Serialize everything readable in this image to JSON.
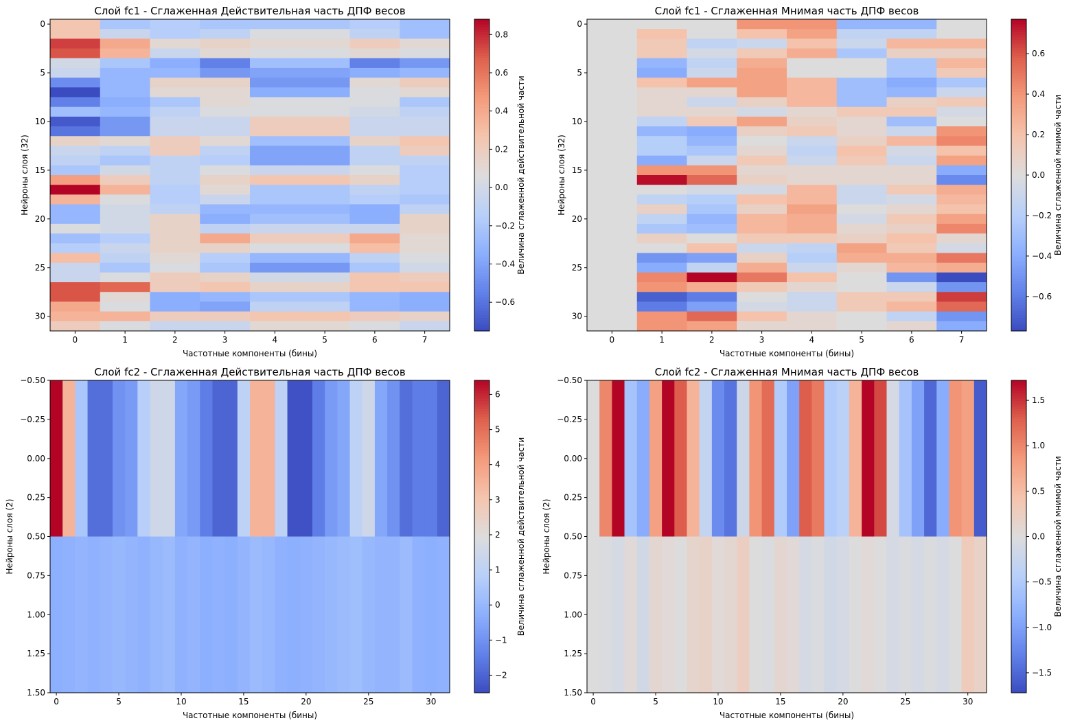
{
  "chart_data": [
    {
      "type": "heatmap",
      "title": "Слой fc1 - Сглаженная Действительная часть ДПФ весов",
      "xlabel": "Частотные компоненты (бины)",
      "ylabel": "Нейроны слоя (32)",
      "colorbar_label": "Величина сглаженной действительной части",
      "colormap": "coolwarm",
      "x_ticks": [
        "0",
        "1",
        "2",
        "3",
        "4",
        "5",
        "6",
        "7"
      ],
      "y_ticks": [
        "0",
        "5",
        "10",
        "15",
        "20",
        "25",
        "30"
      ],
      "cbar_ticks": [
        "−0.6",
        "−0.4",
        "−0.2",
        "0.0",
        "0.2",
        "0.4",
        "0.6",
        "0.8"
      ],
      "vmin": -0.75,
      "vmax": 0.88,
      "rows": 32,
      "cols": 8,
      "values": [
        [
          0.25,
          -0.2,
          -0.15,
          -0.2,
          -0.2,
          -0.2,
          -0.15,
          -0.25
        ],
        [
          0.25,
          -0.05,
          -0.15,
          -0.1,
          0.05,
          0.05,
          -0.1,
          -0.25
        ],
        [
          0.75,
          0.4,
          0.1,
          0.15,
          0.1,
          0.1,
          0.2,
          0.1
        ],
        [
          0.7,
          0.35,
          -0.05,
          0.1,
          0.05,
          0.05,
          0.1,
          0.05
        ],
        [
          0.0,
          -0.2,
          -0.35,
          -0.55,
          -0.25,
          -0.25,
          -0.55,
          -0.45
        ],
        [
          -0.05,
          -0.3,
          -0.3,
          -0.45,
          -0.4,
          -0.4,
          -0.35,
          -0.3
        ],
        [
          -0.5,
          -0.3,
          0.15,
          0.15,
          -0.45,
          -0.45,
          0.1,
          0.2
        ],
        [
          -0.75,
          -0.3,
          0.1,
          0.1,
          -0.35,
          -0.35,
          0.05,
          0.1
        ],
        [
          -0.55,
          -0.35,
          -0.2,
          0.1,
          0.05,
          0.05,
          0.05,
          -0.2
        ],
        [
          -0.25,
          -0.3,
          -0.1,
          0.05,
          0.05,
          0.05,
          0.0,
          -0.1
        ],
        [
          -0.7,
          -0.45,
          -0.05,
          -0.05,
          0.2,
          0.2,
          -0.05,
          -0.05
        ],
        [
          -0.6,
          -0.45,
          -0.05,
          -0.05,
          0.2,
          0.2,
          -0.05,
          -0.05
        ],
        [
          0.15,
          0.1,
          0.2,
          0.1,
          -0.25,
          -0.25,
          0.15,
          0.25
        ],
        [
          -0.05,
          -0.1,
          0.2,
          -0.1,
          -0.4,
          -0.4,
          -0.1,
          0.2
        ],
        [
          -0.1,
          -0.2,
          -0.1,
          -0.15,
          -0.4,
          -0.4,
          -0.1,
          -0.1
        ],
        [
          -0.2,
          0.0,
          -0.1,
          0.05,
          -0.05,
          -0.05,
          0.05,
          -0.15
        ],
        [
          0.45,
          0.2,
          -0.1,
          0.15,
          0.25,
          0.25,
          0.15,
          -0.15
        ],
        [
          0.88,
          0.35,
          -0.15,
          0.1,
          -0.2,
          -0.2,
          -0.1,
          -0.15
        ],
        [
          0.35,
          0.05,
          -0.15,
          -0.05,
          -0.2,
          -0.2,
          -0.15,
          -0.2
        ],
        [
          -0.3,
          0.0,
          -0.1,
          -0.3,
          -0.3,
          -0.3,
          -0.35,
          -0.1
        ],
        [
          -0.3,
          0.0,
          0.15,
          -0.35,
          -0.25,
          -0.25,
          -0.35,
          0.15
        ],
        [
          0.05,
          0.0,
          0.15,
          -0.1,
          -0.05,
          -0.05,
          -0.05,
          0.15
        ],
        [
          -0.25,
          -0.15,
          0.15,
          0.4,
          0.2,
          0.2,
          0.4,
          0.1
        ],
        [
          -0.15,
          -0.05,
          0.15,
          0.15,
          0.05,
          0.05,
          0.3,
          0.1
        ],
        [
          0.3,
          -0.1,
          0.1,
          -0.15,
          -0.3,
          -0.3,
          -0.1,
          0.05
        ],
        [
          -0.05,
          -0.2,
          0.05,
          -0.2,
          -0.45,
          -0.45,
          -0.2,
          0.0
        ],
        [
          -0.05,
          0.05,
          0.2,
          0.15,
          0.0,
          0.0,
          0.25,
          0.2
        ],
        [
          0.7,
          0.65,
          0.2,
          0.25,
          0.15,
          0.15,
          0.25,
          0.25
        ],
        [
          0.7,
          0.1,
          -0.35,
          -0.3,
          -0.2,
          -0.2,
          -0.3,
          -0.35
        ],
        [
          0.4,
          0.05,
          -0.35,
          -0.4,
          -0.1,
          -0.1,
          -0.3,
          -0.35
        ],
        [
          0.35,
          0.35,
          0.2,
          0.2,
          0.25,
          0.25,
          0.2,
          0.15
        ],
        [
          0.2,
          0.05,
          -0.05,
          -0.05,
          0.1,
          0.1,
          0.05,
          -0.05
        ]
      ]
    },
    {
      "type": "heatmap",
      "title": "Слой fc1 - Сглаженная Мнимая часть ДПФ весов",
      "xlabel": "Частотные компоненты (бины)",
      "ylabel": "Нейроны слоя (32)",
      "colorbar_label": "Величина сглаженной мнимой части",
      "colormap": "coolwarm",
      "x_ticks": [
        "0",
        "1",
        "2",
        "3",
        "4",
        "5",
        "6",
        "7"
      ],
      "y_ticks": [
        "0",
        "5",
        "10",
        "15",
        "20",
        "25",
        "30"
      ],
      "cbar_ticks": [
        "−0.6",
        "−0.4",
        "−0.2",
        "0.0",
        "0.2",
        "0.4",
        "0.6"
      ],
      "vmin": -0.77,
      "vmax": 0.77,
      "rows": 32,
      "cols": 8,
      "values": [
        [
          0,
          0.0,
          0.0,
          0.4,
          0.4,
          -0.35,
          -0.35,
          0.0
        ],
        [
          0,
          0.2,
          0.0,
          0.2,
          0.35,
          -0.15,
          -0.15,
          0.0
        ],
        [
          0,
          0.15,
          -0.15,
          -0.1,
          0.2,
          -0.1,
          0.25,
          0.25
        ],
        [
          0,
          0.15,
          -0.05,
          0.15,
          0.3,
          -0.25,
          0.1,
          0.1
        ],
        [
          0,
          -0.35,
          -0.15,
          0.3,
          0.0,
          0.0,
          -0.25,
          0.25
        ],
        [
          0,
          -0.4,
          -0.1,
          0.35,
          0.0,
          0.0,
          -0.25,
          0.15
        ],
        [
          0,
          0.2,
          0.35,
          0.35,
          0.25,
          -0.3,
          -0.4,
          -0.25
        ],
        [
          0,
          0.05,
          0.05,
          0.35,
          0.25,
          -0.3,
          -0.35,
          -0.1
        ],
        [
          0,
          0.05,
          -0.1,
          0.1,
          0.25,
          -0.3,
          0.1,
          0.15
        ],
        [
          0,
          0.05,
          0.05,
          -0.05,
          0.05,
          0.15,
          0.15,
          -0.05
        ],
        [
          0,
          -0.15,
          0.15,
          0.35,
          0.1,
          0.05,
          -0.3,
          0.0
        ],
        [
          0,
          -0.35,
          -0.4,
          0.1,
          0.15,
          0.05,
          -0.1,
          0.4
        ],
        [
          0,
          -0.2,
          -0.35,
          0.0,
          -0.1,
          0.1,
          0.25,
          0.45
        ],
        [
          0,
          -0.2,
          -0.25,
          0.05,
          -0.15,
          0.2,
          -0.05,
          0.2
        ],
        [
          0,
          -0.4,
          -0.1,
          0.15,
          -0.1,
          0.15,
          -0.1,
          0.35
        ],
        [
          0,
          0.4,
          0.4,
          0.05,
          0.05,
          0.05,
          0.05,
          -0.4
        ],
        [
          0,
          0.75,
          0.55,
          0.1,
          0.05,
          0.05,
          0.05,
          -0.55
        ],
        [
          0,
          0.0,
          -0.05,
          -0.05,
          0.25,
          -0.1,
          0.15,
          0.3
        ],
        [
          0,
          -0.15,
          -0.2,
          0.2,
          0.25,
          -0.1,
          -0.05,
          0.25
        ],
        [
          0,
          0.1,
          -0.25,
          0.1,
          0.35,
          0.0,
          0.05,
          0.2
        ],
        [
          0,
          -0.15,
          -0.35,
          0.25,
          0.3,
          -0.05,
          0.15,
          0.35
        ],
        [
          0,
          -0.25,
          -0.3,
          0.25,
          0.3,
          0.05,
          0.1,
          0.45
        ],
        [
          0,
          0.1,
          0.0,
          0.15,
          0.15,
          0.1,
          0.2,
          0.05
        ],
        [
          0,
          0.0,
          0.2,
          -0.1,
          -0.15,
          0.35,
          0.15,
          -0.05
        ],
        [
          0,
          -0.5,
          -0.45,
          0.1,
          -0.2,
          0.3,
          0.3,
          0.5
        ],
        [
          0,
          -0.4,
          -0.15,
          0.3,
          -0.1,
          0.05,
          0.25,
          0.3
        ],
        [
          0,
          0.45,
          0.77,
          0.5,
          0.2,
          0.0,
          -0.5,
          -0.77
        ],
        [
          0,
          0.4,
          0.3,
          0.15,
          0.05,
          0.0,
          -0.1,
          -0.5
        ],
        [
          0,
          -0.7,
          -0.6,
          0.0,
          -0.1,
          0.15,
          0.15,
          0.65
        ],
        [
          0,
          -0.6,
          -0.45,
          -0.05,
          -0.1,
          0.15,
          0.25,
          0.55
        ],
        [
          0,
          0.4,
          0.55,
          0.2,
          0.05,
          0.0,
          -0.15,
          -0.5
        ],
        [
          0,
          0.4,
          0.35,
          0.05,
          0.05,
          0.0,
          0.05,
          -0.4
        ]
      ]
    },
    {
      "type": "heatmap",
      "title": "Слой fc2 - Сглаженная Действительная часть ДПФ весов",
      "xlabel": "Частотные компоненты (бины)",
      "ylabel": "Нейроны слоя (2)",
      "colorbar_label": "Величина сглаженной действительной части",
      "colormap": "coolwarm",
      "x_ticks": [
        "0",
        "5",
        "10",
        "15",
        "20",
        "25",
        "30"
      ],
      "x_tick_values": [
        0,
        5,
        10,
        15,
        20,
        25,
        30
      ],
      "y_ticks": [
        "−0.50",
        "−0.25",
        "0.00",
        "0.25",
        "0.50",
        "0.75",
        "1.00",
        "1.25",
        "1.50"
      ],
      "cbar_ticks": [
        "−2",
        "−1",
        "0",
        "1",
        "2",
        "3",
        "4",
        "5",
        "6"
      ],
      "vmin": -2.5,
      "vmax": 6.4,
      "rows": 2,
      "cols": 32,
      "values": [
        [
          6.4,
          3.5,
          0.5,
          -1.8,
          -1.8,
          -1.0,
          -0.8,
          0.8,
          1.5,
          1.5,
          -0.5,
          -0.8,
          -1.5,
          -2.0,
          -2.0,
          1.0,
          3.5,
          3.5,
          1.0,
          -2.4,
          -2.4,
          -1.5,
          -0.8,
          -0.5,
          1.0,
          1.5,
          -0.5,
          -1.0,
          -1.8,
          -1.5,
          -1.5,
          -2.0
        ],
        [
          -0.3,
          -0.2,
          -0.1,
          -0.2,
          -0.1,
          0.0,
          -0.1,
          -0.2,
          0.0,
          0.1,
          -0.2,
          -0.1,
          -0.3,
          -0.2,
          -0.3,
          -0.1,
          0.1,
          0.0,
          -0.2,
          -0.3,
          -0.2,
          -0.1,
          0.0,
          0.1,
          0.2,
          0.0,
          -0.1,
          -0.1,
          0.1,
          -0.2,
          -0.3,
          -0.2
        ]
      ]
    },
    {
      "type": "heatmap",
      "title": "Слой fc2 - Сглаженная Мнимая часть ДПФ весов",
      "xlabel": "Частотные компоненты (бины)",
      "ylabel": "Нейроны слоя (2)",
      "colorbar_label": "Величина сглаженной мнимой части",
      "colormap": "coolwarm",
      "x_ticks": [
        "0",
        "5",
        "10",
        "15",
        "20",
        "25",
        "30"
      ],
      "x_tick_values": [
        0,
        5,
        10,
        15,
        20,
        25,
        30
      ],
      "y_ticks": [
        "−0.50",
        "−0.25",
        "0.00",
        "0.25",
        "0.50",
        "0.75",
        "1.00",
        "1.25",
        "1.50"
      ],
      "cbar_ticks": [
        "−1.5",
        "−1.0",
        "−0.5",
        "0.0",
        "0.5",
        "1.0",
        "1.5"
      ],
      "vmin": -1.72,
      "vmax": 1.72,
      "rows": 2,
      "cols": 32,
      "values": [
        [
          0.0,
          1.0,
          1.72,
          -0.6,
          -0.9,
          0.8,
          1.72,
          1.3,
          0.6,
          -0.3,
          -1.2,
          -1.4,
          -0.2,
          0.9,
          1.2,
          -0.5,
          -1.0,
          1.3,
          1.1,
          -0.5,
          -0.4,
          0.6,
          1.72,
          1.4,
          -0.1,
          -0.6,
          -1.0,
          -1.5,
          -0.9,
          0.9,
          0.8,
          -1.6
        ],
        [
          0.0,
          -0.05,
          -0.1,
          0.05,
          -0.15,
          0.1,
          0.05,
          0.0,
          0.15,
          0.2,
          0.05,
          0.1,
          0.25,
          0.0,
          -0.05,
          0.1,
          0.05,
          -0.1,
          -0.05,
          -0.15,
          -0.1,
          0.0,
          0.05,
          0.0,
          -0.1,
          -0.05,
          -0.1,
          -0.05,
          -0.1,
          0.0,
          0.3,
          0.2
        ]
      ]
    }
  ]
}
